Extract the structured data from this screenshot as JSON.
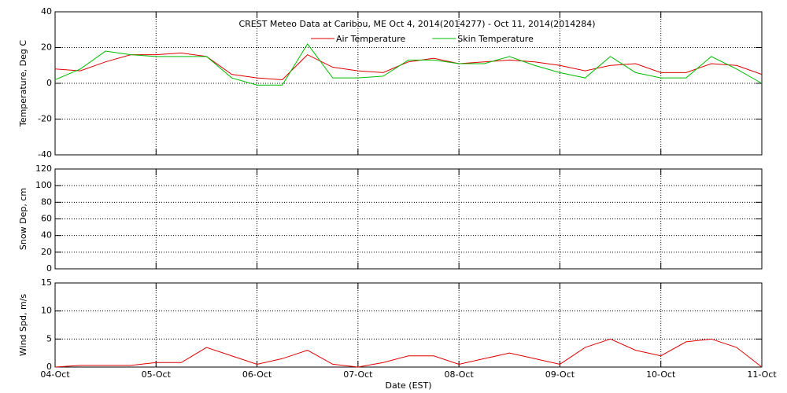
{
  "chart_data": [
    {
      "type": "line",
      "title": "CREST Meteo Data at Caribou, ME   Oct  4, 2014(2014277) - Oct 11, 2014(2014284)",
      "ylabel": "Temperature, Deg C",
      "xlim": [
        0,
        7
      ],
      "ylim": [
        -40,
        40
      ],
      "yticks": [
        -40,
        -20,
        0,
        20,
        40
      ],
      "grid": true,
      "x": [
        0,
        0.25,
        0.5,
        0.75,
        1,
        1.25,
        1.5,
        1.75,
        2,
        2.25,
        2.5,
        2.75,
        3,
        3.25,
        3.5,
        3.75,
        4,
        4.25,
        4.5,
        4.75,
        5,
        5.25,
        5.5,
        5.75,
        6,
        6.25,
        6.5,
        6.75,
        7
      ],
      "series": [
        {
          "name": "Air Temperature",
          "color": "#dd0000",
          "values": [
            8,
            7,
            12,
            16,
            16,
            17,
            15,
            5,
            3,
            2,
            16,
            9,
            7,
            6,
            12,
            14,
            11,
            12,
            13,
            12,
            10,
            7,
            10,
            11,
            6,
            6,
            11,
            10,
            5
          ]
        },
        {
          "name": "Skin Temperature",
          "color": "#00bb00",
          "values": [
            2,
            8,
            18,
            16,
            15,
            15,
            15,
            3,
            -1,
            -1,
            22,
            3,
            3,
            4,
            13,
            13,
            11,
            11,
            15,
            10,
            6,
            3,
            15,
            6,
            3,
            3,
            15,
            8,
            0
          ]
        }
      ]
    },
    {
      "type": "line",
      "ylabel": "Snow Dep, cm",
      "xlim": [
        0,
        7
      ],
      "ylim": [
        0,
        120
      ],
      "yticks": [
        0,
        20,
        40,
        60,
        80,
        100,
        120
      ],
      "grid": true,
      "series": []
    },
    {
      "type": "line",
      "ylabel": "Wind Spd, m/s",
      "xlabel": "Date (EST)",
      "xlim": [
        0,
        7
      ],
      "ylim": [
        0,
        15
      ],
      "yticks": [
        0,
        5,
        10,
        15
      ],
      "grid": true,
      "xticks": [
        {
          "value": 0,
          "label": "04-Oct"
        },
        {
          "value": 1,
          "label": "05-Oct"
        },
        {
          "value": 2,
          "label": "06-Oct"
        },
        {
          "value": 3,
          "label": "07-Oct"
        },
        {
          "value": 4,
          "label": "08-Oct"
        },
        {
          "value": 5,
          "label": "09-Oct"
        },
        {
          "value": 6,
          "label": "10-Oct"
        },
        {
          "value": 7,
          "label": "11-Oct"
        }
      ],
      "x": [
        0,
        0.25,
        0.5,
        0.75,
        1,
        1.25,
        1.5,
        1.75,
        2,
        2.25,
        2.5,
        2.75,
        3,
        3.25,
        3.5,
        3.75,
        4,
        4.25,
        4.5,
        4.75,
        5,
        5.25,
        5.5,
        5.75,
        6,
        6.25,
        6.5,
        6.75,
        7
      ],
      "series": [
        {
          "color": "#dd0000",
          "values": [
            0,
            0.3,
            0.3,
            0.3,
            0.8,
            0.8,
            3.5,
            2,
            0.5,
            1.5,
            3,
            0.5,
            0,
            0.8,
            2,
            2,
            0.5,
            1.5,
            2.5,
            1.5,
            0.5,
            3.5,
            5,
            3,
            2,
            4.5,
            5,
            3.5,
            0
          ]
        }
      ]
    }
  ]
}
